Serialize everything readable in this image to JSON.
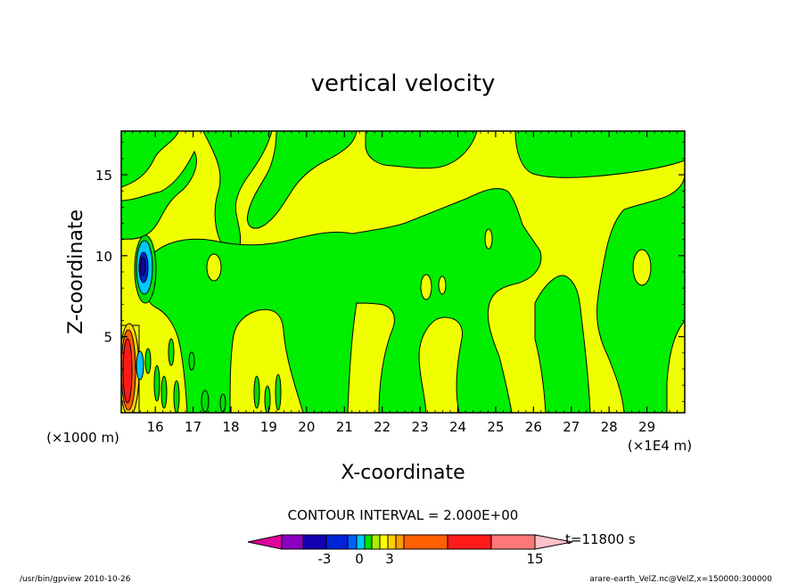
{
  "chart_data": {
    "type": "contour",
    "title": "vertical velocity",
    "xlabel": "X-coordinate",
    "ylabel": "Z-coordinate",
    "x_unit": "(×1E4 m)",
    "y_unit": "(×1000 m)",
    "xlim": [
      15.1,
      30
    ],
    "ylim": [
      0.3,
      17.7
    ],
    "x_ticks": [
      "16",
      "17",
      "18",
      "19",
      "20",
      "21",
      "22",
      "23",
      "24",
      "25",
      "26",
      "27",
      "28",
      "29"
    ],
    "y_ticks": [
      "5",
      "10",
      "15"
    ],
    "contour_interval_text": "CONTOUR INTERVAL = 2.000E+00",
    "time_text": "t=11800 s",
    "colorbar": {
      "labels": [
        "-3",
        "0",
        "3",
        "15"
      ],
      "colors": [
        "#e0009c",
        "#8b00c0",
        "#1200b0",
        "#0023d8",
        "#0060ff",
        "#00c8ff",
        "#00e000",
        "#aaee00",
        "#ffff00",
        "#ffd000",
        "#ff9c00",
        "#ff6000",
        "#ff1a1a",
        "#ff7878",
        "#ffc0c8"
      ]
    },
    "features": [
      {
        "type": "downdraft",
        "x": 15.6,
        "z": 9.0,
        "min_class": "-3"
      },
      {
        "type": "updraft",
        "x": 15.2,
        "z": 2.5,
        "max_class": "15"
      }
    ]
  },
  "footer": {
    "left": "/usr/bin/gpview   2010-10-26",
    "right": "arare-earth_VelZ.nc@VelZ,x=150000:300000"
  },
  "colors": {
    "field_green": "#00ee00",
    "field_yellow": "#f0ff00"
  }
}
